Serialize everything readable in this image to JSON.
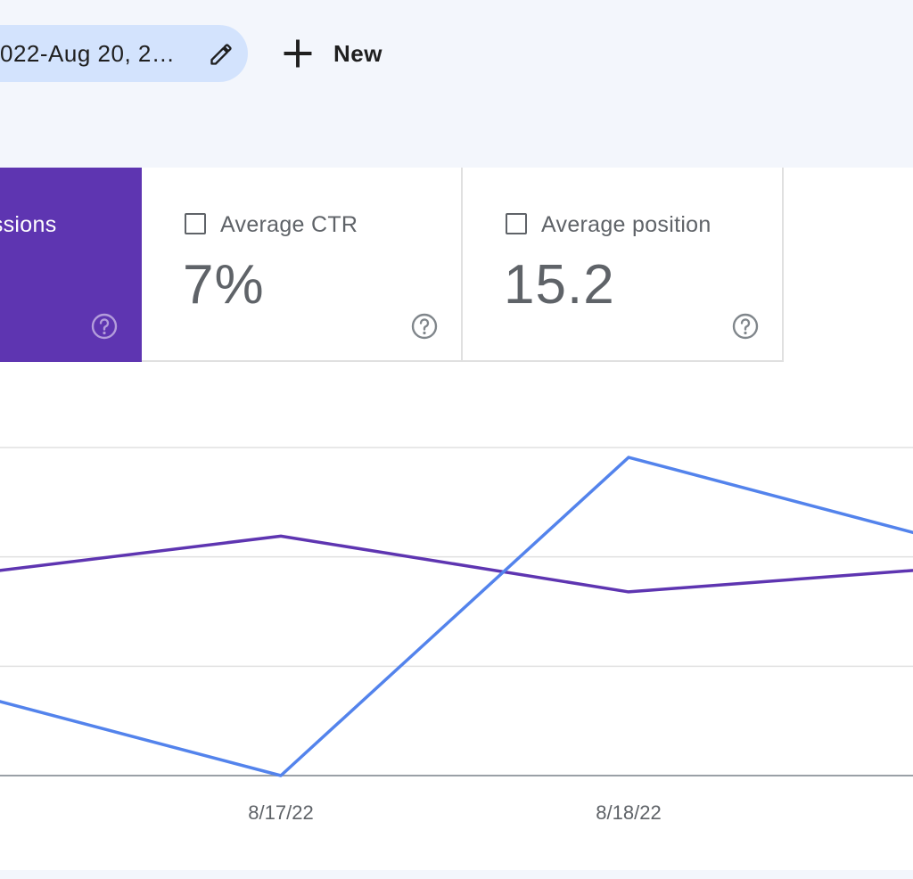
{
  "toolbar": {
    "date_chip_label": "022-Aug 20, 2…",
    "new_button_label": "New"
  },
  "metrics": {
    "impressions": {
      "label": "ressions",
      "selected": true
    },
    "ctr": {
      "label": "Average CTR",
      "value": "7%",
      "checked": false
    },
    "position": {
      "label": "Average position",
      "value": "15.2",
      "checked": false
    }
  },
  "colors": {
    "impressions": "#5e35b1",
    "clicks": "#5383ec",
    "chip_bg": "#d3e3fd",
    "page_bg": "#f3f6fc"
  },
  "icons": {
    "edit": "pencil-icon",
    "add": "plus-icon",
    "help": "help-circle-icon"
  },
  "chart_data": {
    "type": "line",
    "x": [
      "",
      "8/17/22",
      "8/18/22",
      ""
    ],
    "x_tick_labels": [
      "8/17/22",
      "8/18/22"
    ],
    "grid": true,
    "y_gridlines": 4,
    "series": [
      {
        "color": "#5e35b1",
        "values": [
          0.6,
          0.73,
          0.56,
          0.64
        ]
      },
      {
        "color": "#5383ec",
        "values": [
          0.28,
          0.0,
          0.97,
          0.69
        ]
      }
    ]
  }
}
